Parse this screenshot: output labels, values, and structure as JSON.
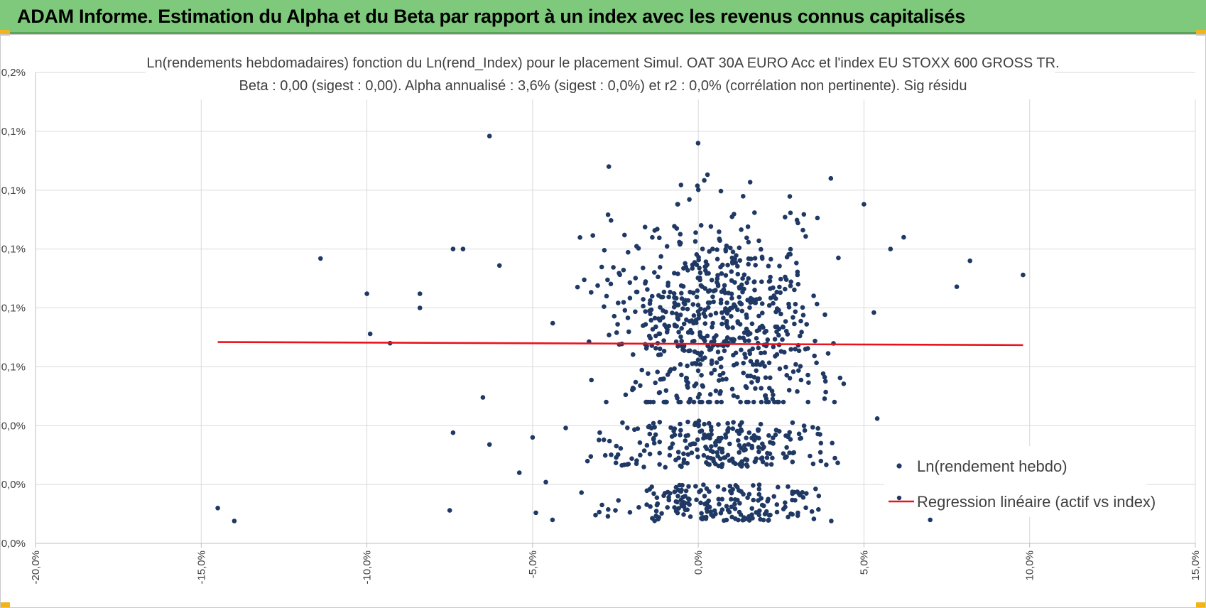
{
  "header": {
    "title": "ADAM Informe. Estimation du Alpha et du Beta par rapport à un index avec les revenus connus capitalisés"
  },
  "colors": {
    "banner": "#7ec97c",
    "points": "#1f3864",
    "regression": "#e8141c",
    "grid": "#d9d9d9"
  },
  "chart_data": {
    "type": "scatter",
    "title_line1": "Ln(rendements hebdomadaires) fonction du Ln(rend_Index) pour le placement Simul. OAT 30A EURO Acc et l'index EU STOXX 600 GROSS TR.",
    "title_line2": "Beta : 0,00 (sigest : 0,00). Alpha annualisé : 3,6% (sigest : 0,0%) et r2 : 0,0% (corrélation non pertinente). Sig résidu",
    "xlim": [
      -20,
      15
    ],
    "ylim": [
      0,
      0.2
    ],
    "x_ticks": [
      {
        "value": -20,
        "label": "-20,0%"
      },
      {
        "value": -15,
        "label": "-15,0%"
      },
      {
        "value": -10,
        "label": "-10,0%"
      },
      {
        "value": -5,
        "label": "-5,0%"
      },
      {
        "value": 0,
        "label": "0,0%"
      },
      {
        "value": 5,
        "label": "5,0%"
      },
      {
        "value": 10,
        "label": "10,0%"
      },
      {
        "value": 15,
        "label": "15,0%"
      }
    ],
    "y_ticks": [
      {
        "value": 0.0,
        "label": "0,0%"
      },
      {
        "value": 0.025,
        "label": "0,0%"
      },
      {
        "value": 0.05,
        "label": "0,0%"
      },
      {
        "value": 0.075,
        "label": "0,1%"
      },
      {
        "value": 0.1,
        "label": "0,1%"
      },
      {
        "value": 0.125,
        "label": "0,1%"
      },
      {
        "value": 0.15,
        "label": "0,1%"
      },
      {
        "value": 0.175,
        "label": "0,1%"
      },
      {
        "value": 0.2,
        "label": "0,2%"
      }
    ],
    "series": [
      {
        "name": "Ln(rendement hebdo)",
        "type": "scatter",
        "cluster": {
          "count": 1100,
          "x_center": 0.6,
          "x_sd": 1.6,
          "y_min": 0.0095,
          "y_max": 0.167
        },
        "outliers": [
          [
            -14.5,
            0.015
          ],
          [
            -14.0,
            0.0095
          ],
          [
            -11.4,
            0.121
          ],
          [
            -10.0,
            0.106
          ],
          [
            -9.9,
            0.089
          ],
          [
            -9.3,
            0.085
          ],
          [
            -8.4,
            0.106
          ],
          [
            -8.4,
            0.1
          ],
          [
            -7.5,
            0.014
          ],
          [
            -7.4,
            0.047
          ],
          [
            -7.4,
            0.125
          ],
          [
            -7.1,
            0.125
          ],
          [
            -6.5,
            0.062
          ],
          [
            -6.3,
            0.042
          ],
          [
            -6.3,
            0.173
          ],
          [
            -6.0,
            0.118
          ],
          [
            -5.4,
            0.03
          ],
          [
            -5.0,
            0.045
          ],
          [
            -4.9,
            0.013
          ],
          [
            -4.6,
            0.026
          ],
          [
            -4.4,
            0.01
          ],
          [
            -4.0,
            0.049
          ],
          [
            -3.1,
            0.012
          ],
          [
            -2.5,
            0.014
          ],
          [
            -2.7,
            0.16
          ],
          [
            5.4,
            0.053
          ],
          [
            5.3,
            0.098
          ],
          [
            6.2,
            0.13
          ],
          [
            7.0,
            0.01
          ],
          [
            7.8,
            0.109
          ],
          [
            8.2,
            0.12
          ],
          [
            9.8,
            0.114
          ],
          [
            5.8,
            0.125
          ],
          [
            4.0,
            0.155
          ],
          [
            5.0,
            0.144
          ]
        ]
      },
      {
        "name": "Regression linéaire (actif vs index)",
        "type": "line",
        "x": [
          -14.5,
          9.8
        ],
        "y": [
          0.0855,
          0.0842
        ]
      }
    ],
    "legend": {
      "position": "bottom-right",
      "entries": [
        "Ln(rendement hebdo)",
        "Regression linéaire (actif vs index)"
      ]
    }
  }
}
